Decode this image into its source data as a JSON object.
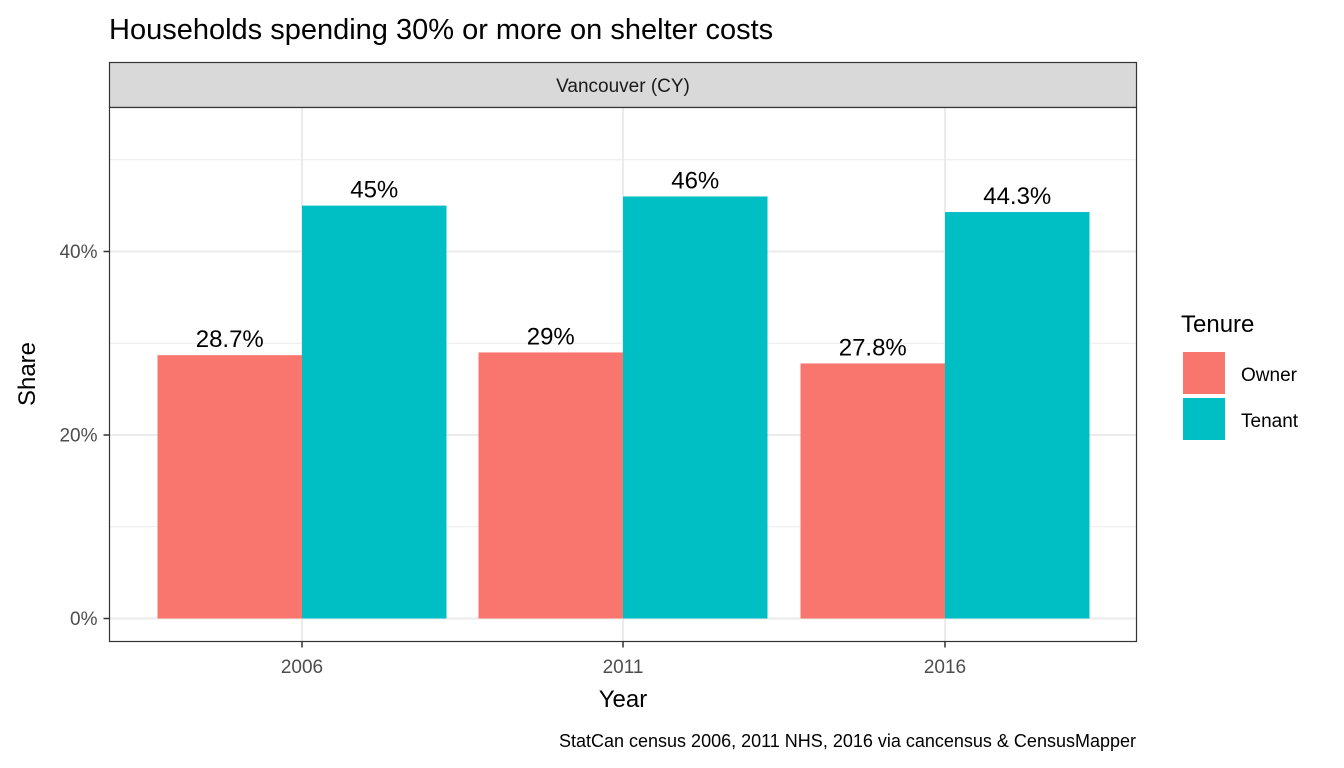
{
  "chart_data": {
    "type": "bar",
    "title": "Households spending 30% or more on shelter costs",
    "facet_label": "Vancouver (CY)",
    "xlabel": "Year",
    "ylabel": "Share",
    "caption": "StatCan census 2006, 2011 NHS, 2016 via cancensus & CensusMapper",
    "categories": [
      "2006",
      "2011",
      "2016"
    ],
    "series": [
      {
        "name": "Owner",
        "color": "#F8766D",
        "values": [
          28.7,
          29.0,
          27.8
        ],
        "labels": [
          "28.7%",
          "29%",
          "27.8%"
        ]
      },
      {
        "name": "Tenant",
        "color": "#00BFC4",
        "values": [
          45.0,
          46.0,
          44.3
        ],
        "labels": [
          "45%",
          "46%",
          "44.3%"
        ]
      }
    ],
    "ylim": [
      -2.5,
      55.8
    ],
    "y_ticks": [
      0,
      20,
      40
    ],
    "y_tick_labels": [
      "0%",
      "20%",
      "40%"
    ],
    "y_minor_ticks": [
      10,
      30,
      50
    ],
    "grid": true,
    "legend": {
      "title": "Tenure",
      "position": "right"
    }
  }
}
